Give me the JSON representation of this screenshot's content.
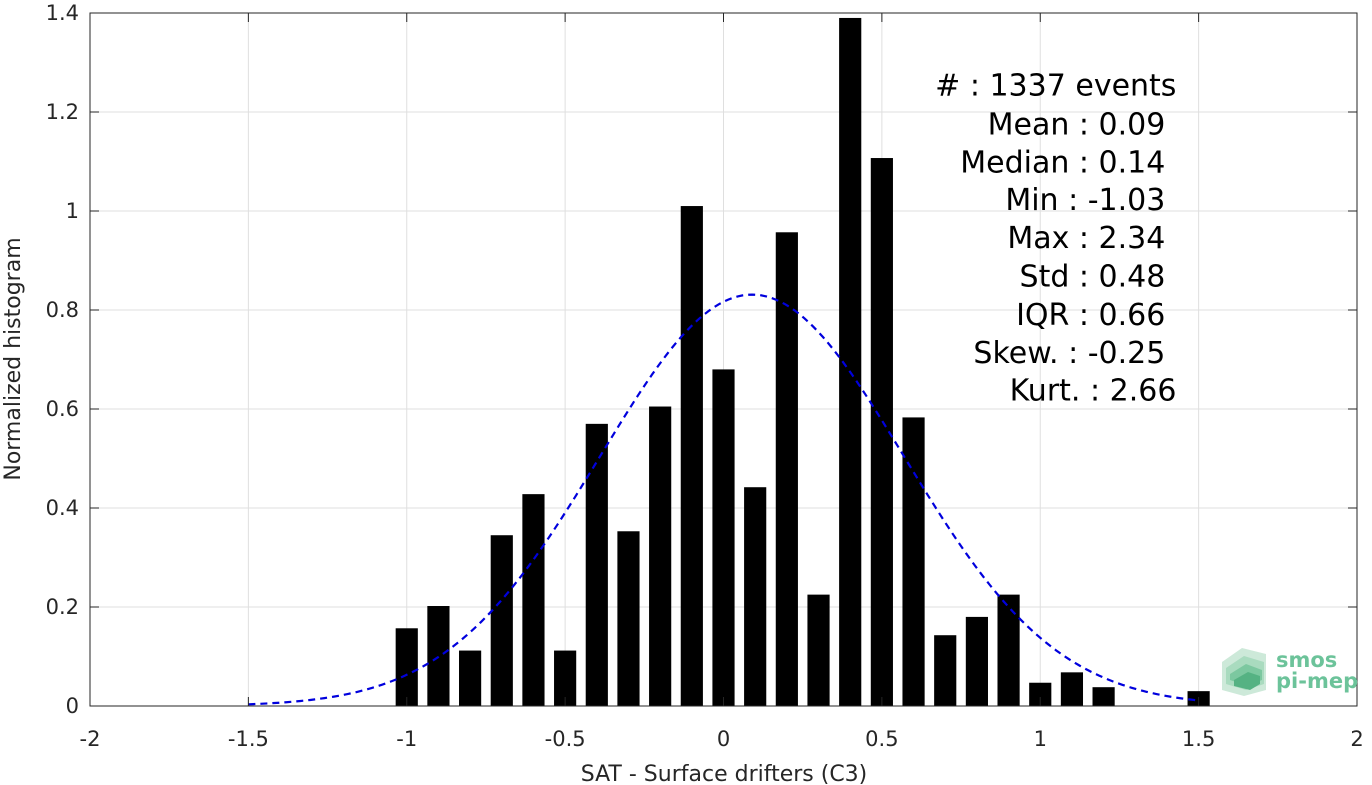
{
  "chart_data": {
    "type": "bar",
    "xlabel": "SAT - Surface drifters (C3)",
    "ylabel": "Normalized histogram",
    "xlim": [
      -2,
      2
    ],
    "ylim": [
      0,
      1.4
    ],
    "grid": true,
    "x_ticks": [
      -2,
      -1.5,
      -1,
      -0.5,
      0,
      0.5,
      1,
      1.5,
      2
    ],
    "x_tick_labels": [
      "-2",
      "-1.5",
      "-1",
      "-0.5",
      "0",
      "0.5",
      "1",
      "1.5",
      "2"
    ],
    "y_ticks": [
      0,
      0.2,
      0.4,
      0.6,
      0.8,
      1,
      1.2,
      1.4
    ],
    "y_tick_labels": [
      "0",
      "0.2",
      "0.4",
      "0.6",
      "0.8",
      "1",
      "1.2",
      "1.4"
    ],
    "bar_width": 0.07,
    "bars": {
      "x": [
        -1.0,
        -0.9,
        -0.8,
        -0.7,
        -0.6,
        -0.5,
        -0.4,
        -0.3,
        -0.2,
        -0.1,
        0.0,
        0.1,
        0.2,
        0.3,
        0.4,
        0.5,
        0.6,
        0.7,
        0.8,
        0.9,
        1.0,
        1.1,
        1.2,
        1.5
      ],
      "values": [
        0.157,
        0.202,
        0.112,
        0.345,
        0.428,
        0.112,
        0.57,
        0.353,
        0.605,
        1.01,
        0.68,
        0.442,
        0.957,
        0.225,
        1.39,
        1.107,
        0.583,
        0.143,
        0.18,
        0.225,
        0.047,
        0.068,
        0.038,
        0.03
      ],
      "color": "#000000"
    },
    "fit_curve": {
      "style": "dashed",
      "color": "#0000dd",
      "mean": 0.09,
      "std": 0.48,
      "x_range": [
        -1.5,
        1.5
      ]
    },
    "stats": [
      {
        "label": "#  : 1337 events",
        "x": 1.43
      },
      {
        "label": "Mean : 0.09",
        "x": 1.395
      },
      {
        "label": "Median : 0.14",
        "x": 1.395
      },
      {
        "label": "Min : -1.03",
        "x": 1.395
      },
      {
        "label": "Max : 2.34",
        "x": 1.395
      },
      {
        "label": "Std : 0.48",
        "x": 1.395
      },
      {
        "label": "IQR : 0.66",
        "x": 1.395
      },
      {
        "label": "Skew. : -0.25",
        "x": 1.395
      },
      {
        "label": "Kurt. : 2.66",
        "x": 1.43
      }
    ],
    "stats_y": [
      1.233,
      1.155,
      1.078,
      1.002,
      0.925,
      0.847,
      0.77,
      0.693,
      0.617
    ]
  },
  "logo": {
    "line1": "smos",
    "line2": "pi-mep",
    "color": "#6cc39a"
  }
}
